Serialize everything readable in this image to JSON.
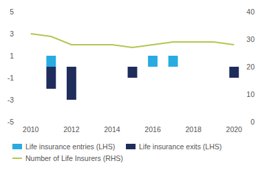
{
  "chart_data": {
    "type": "bar",
    "x": [
      2010,
      2011,
      2012,
      2013,
      2014,
      2015,
      2016,
      2017,
      2018,
      2019,
      2020
    ],
    "xlim": [
      2009.5,
      2020.5
    ],
    "xticks": [
      2010,
      2012,
      2014,
      2016,
      2018,
      2020
    ],
    "ylim": [
      -5,
      5
    ],
    "yticks": [
      -5,
      -3,
      -1,
      1,
      3,
      5
    ],
    "y2lim": [
      0,
      40
    ],
    "y2ticks": [
      0,
      10,
      20,
      30,
      40
    ],
    "grid": false,
    "legend": "bottom",
    "series": [
      {
        "name": "Life insurance entries (LHS)",
        "type": "bar",
        "color": "#29abe2",
        "values": [
          null,
          1,
          null,
          null,
          null,
          null,
          1,
          1,
          null,
          null,
          null
        ]
      },
      {
        "name": "Life insurance exits (LHS)",
        "type": "bar",
        "color": "#1f2d5c",
        "values": [
          null,
          -2,
          -3,
          null,
          null,
          -1,
          null,
          null,
          null,
          null,
          -1
        ]
      },
      {
        "name": "Number of Life Insurers (RHS)",
        "type": "line",
        "axis": "y2",
        "color": "#b3c64f",
        "values": [
          32,
          31,
          28,
          28,
          28,
          27,
          28,
          29,
          29,
          29,
          28
        ]
      }
    ]
  }
}
